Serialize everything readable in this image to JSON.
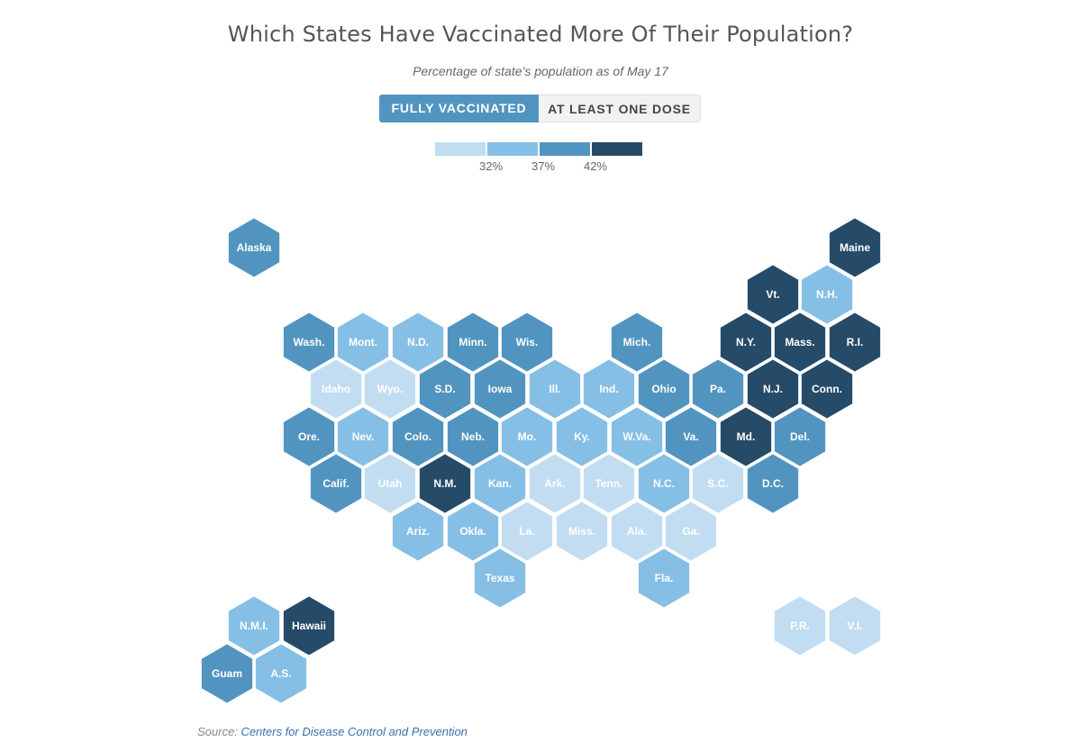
{
  "title": "Which States Have Vaccinated More Of Their Population?",
  "subtitle": "Percentage of state’s population as of May 17",
  "toggle": {
    "active_label": "FULLY VACCINATED",
    "inactive_label": "AT LEAST ONE DOSE"
  },
  "legend": {
    "colors": [
      "#c2ddf1",
      "#86bfe6",
      "#5294c0",
      "#264b69"
    ],
    "ticks": [
      "32%",
      "37%",
      "42%"
    ]
  },
  "source": {
    "label": "Source:",
    "link_text": "Centers for Disease Control and Prevention"
  },
  "bins": [
    "#c2ddf1",
    "#86bfe6",
    "#5294c0",
    "#264b69"
  ],
  "states": [
    {
      "label": "Alaska",
      "bin": 2
    },
    {
      "label": "Maine",
      "bin": 3
    },
    {
      "label": "Vt.",
      "bin": 3
    },
    {
      "label": "N.H.",
      "bin": 1
    },
    {
      "label": "Wash.",
      "bin": 2
    },
    {
      "label": "Mont.",
      "bin": 1
    },
    {
      "label": "N.D.",
      "bin": 1
    },
    {
      "label": "Minn.",
      "bin": 2
    },
    {
      "label": "Wis.",
      "bin": 2
    },
    {
      "label": "Mich.",
      "bin": 2
    },
    {
      "label": "N.Y.",
      "bin": 3
    },
    {
      "label": "Mass.",
      "bin": 3
    },
    {
      "label": "R.I.",
      "bin": 3
    },
    {
      "label": "Idaho",
      "bin": 0
    },
    {
      "label": "Wyo.",
      "bin": 0
    },
    {
      "label": "S.D.",
      "bin": 2
    },
    {
      "label": "Iowa",
      "bin": 2
    },
    {
      "label": "Ill.",
      "bin": 1
    },
    {
      "label": "Ind.",
      "bin": 1
    },
    {
      "label": "Ohio",
      "bin": 2
    },
    {
      "label": "Pa.",
      "bin": 2
    },
    {
      "label": "N.J.",
      "bin": 3
    },
    {
      "label": "Conn.",
      "bin": 3
    },
    {
      "label": "Ore.",
      "bin": 2
    },
    {
      "label": "Nev.",
      "bin": 1
    },
    {
      "label": "Colo.",
      "bin": 2
    },
    {
      "label": "Neb.",
      "bin": 2
    },
    {
      "label": "Mo.",
      "bin": 1
    },
    {
      "label": "Ky.",
      "bin": 1
    },
    {
      "label": "W.Va.",
      "bin": 1
    },
    {
      "label": "Va.",
      "bin": 2
    },
    {
      "label": "Md.",
      "bin": 3
    },
    {
      "label": "Del.",
      "bin": 2
    },
    {
      "label": "Calif.",
      "bin": 2
    },
    {
      "label": "Utah",
      "bin": 0
    },
    {
      "label": "N.M.",
      "bin": 3
    },
    {
      "label": "Kan.",
      "bin": 1
    },
    {
      "label": "Ark.",
      "bin": 0
    },
    {
      "label": "Tenn.",
      "bin": 0
    },
    {
      "label": "N.C.",
      "bin": 1
    },
    {
      "label": "S.C.",
      "bin": 0
    },
    {
      "label": "D.C.",
      "bin": 2
    },
    {
      "label": "Ariz.",
      "bin": 1
    },
    {
      "label": "Okla.",
      "bin": 1
    },
    {
      "label": "La.",
      "bin": 0
    },
    {
      "label": "Miss.",
      "bin": 0
    },
    {
      "label": "Ala.",
      "bin": 0
    },
    {
      "label": "Ga.",
      "bin": 0
    },
    {
      "label": "Texas",
      "bin": 1
    },
    {
      "label": "Fla.",
      "bin": 1
    },
    {
      "label": "N.M.I.",
      "bin": 1
    },
    {
      "label": "Hawaii",
      "bin": 3
    },
    {
      "label": "P.R.",
      "bin": 0
    },
    {
      "label": "V.I.",
      "bin": 0
    },
    {
      "label": "Guam",
      "bin": 2
    },
    {
      "label": "A.S.",
      "bin": 1
    }
  ]
}
